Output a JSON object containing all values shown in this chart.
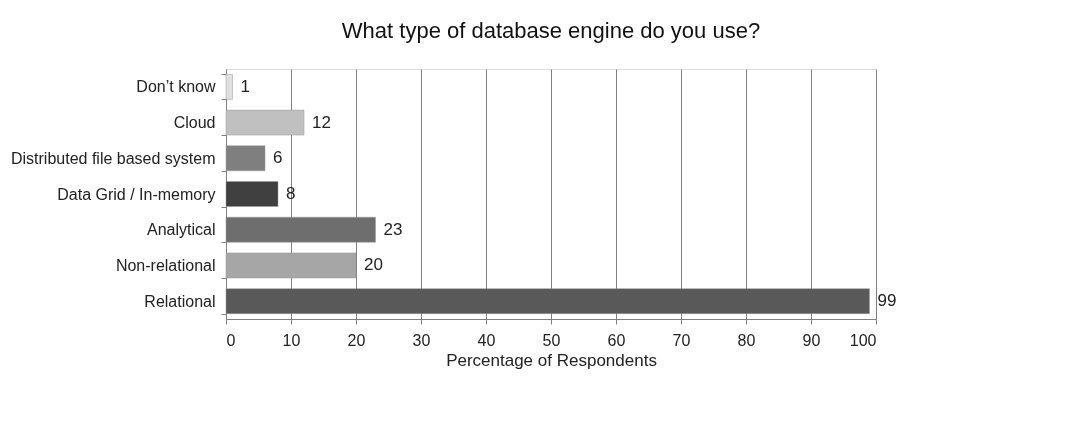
{
  "chart_data": {
    "type": "bar",
    "orientation": "horizontal",
    "title": "What type of database engine do you use?",
    "categories": [
      "Don’t know",
      "Cloud",
      "Distributed file based system",
      "Data Grid / In-memory",
      "Analytical",
      "Non-relational",
      "Relational"
    ],
    "values": [
      1,
      12,
      6,
      8,
      23,
      20,
      99
    ],
    "colors": [
      "#e0e0e0",
      "#c0c0c0",
      "#7f7f7f",
      "#404040",
      "#6e6e6e",
      "#a6a6a6",
      "#595959"
    ],
    "xlabel": "Percentage of Respondents",
    "xlim": [
      0,
      100
    ],
    "xticks": [
      0,
      10,
      20,
      30,
      40,
      50,
      60,
      70,
      80,
      90,
      100
    ],
    "grid": "x",
    "data_labels": true
  }
}
